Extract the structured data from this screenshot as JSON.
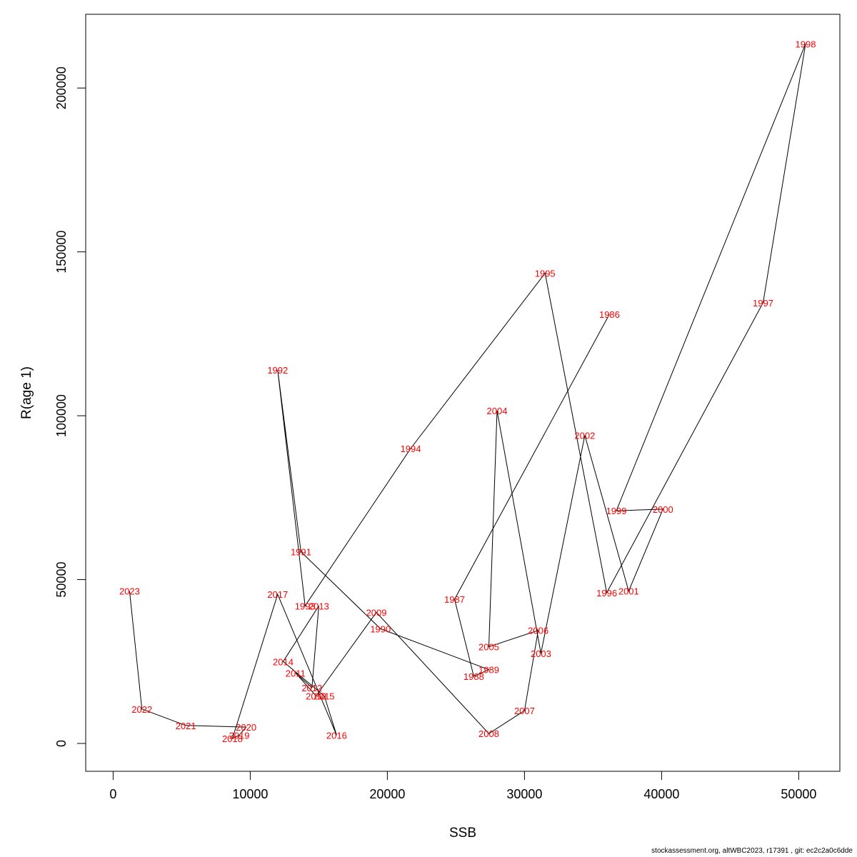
{
  "chart_data": {
    "type": "line",
    "title": "",
    "xlabel": "SSB",
    "ylabel": "R(age 1)",
    "xlim": [
      -2000,
      53000
    ],
    "ylim": [
      -8500,
      222500
    ],
    "x_ticks": [
      0,
      10000,
      20000,
      30000,
      40000,
      50000
    ],
    "x_tick_labels": [
      "0",
      "10000",
      "20000",
      "30000",
      "40000",
      "50000"
    ],
    "y_ticks": [
      0,
      50000,
      100000,
      150000,
      200000
    ],
    "y_tick_labels": [
      "0",
      "50000",
      "100000",
      "150000",
      "200000"
    ],
    "grid": false,
    "line_color": "#000000",
    "label_color": "#ff0000",
    "points": [
      {
        "year": "1986",
        "x": 36200,
        "y": 131000
      },
      {
        "year": "1987",
        "x": 24900,
        "y": 44000
      },
      {
        "year": "1988",
        "x": 26300,
        "y": 20500
      },
      {
        "year": "1989",
        "x": 27400,
        "y": 22500
      },
      {
        "year": "1990",
        "x": 19500,
        "y": 35000
      },
      {
        "year": "1991",
        "x": 13700,
        "y": 58500
      },
      {
        "year": "1992",
        "x": 12000,
        "y": 114000
      },
      {
        "year": "1993",
        "x": 14000,
        "y": 42000
      },
      {
        "year": "1994",
        "x": 21700,
        "y": 90000
      },
      {
        "year": "1995",
        "x": 31500,
        "y": 143500
      },
      {
        "year": "1996",
        "x": 36000,
        "y": 46000
      },
      {
        "year": "1997",
        "x": 47400,
        "y": 134500
      },
      {
        "year": "1998",
        "x": 50500,
        "y": 213500
      },
      {
        "year": "1999",
        "x": 36700,
        "y": 71000
      },
      {
        "year": "2000",
        "x": 40100,
        "y": 71500
      },
      {
        "year": "2001",
        "x": 37600,
        "y": 46500
      },
      {
        "year": "2002",
        "x": 34400,
        "y": 94000
      },
      {
        "year": "2003",
        "x": 31200,
        "y": 27500
      },
      {
        "year": "2004",
        "x": 28000,
        "y": 101500
      },
      {
        "year": "2005",
        "x": 27400,
        "y": 29500
      },
      {
        "year": "2006",
        "x": 31000,
        "y": 34500
      },
      {
        "year": "2007",
        "x": 30000,
        "y": 10000
      },
      {
        "year": "2008",
        "x": 27400,
        "y": 3000
      },
      {
        "year": "2009",
        "x": 19200,
        "y": 40000
      },
      {
        "year": "2010",
        "x": 14800,
        "y": 14500
      },
      {
        "year": "2011",
        "x": 13300,
        "y": 21500
      },
      {
        "year": "2012",
        "x": 14500,
        "y": 17000
      },
      {
        "year": "2013",
        "x": 15000,
        "y": 42000
      },
      {
        "year": "2014",
        "x": 12400,
        "y": 25000
      },
      {
        "year": "2015",
        "x": 15400,
        "y": 14500
      },
      {
        "year": "2016",
        "x": 16300,
        "y": 2500
      },
      {
        "year": "2017",
        "x": 12000,
        "y": 45500
      },
      {
        "year": "2018",
        "x": 8700,
        "y": 1500
      },
      {
        "year": "2019",
        "x": 9200,
        "y": 2500
      },
      {
        "year": "2020",
        "x": 9700,
        "y": 5000
      },
      {
        "year": "2021",
        "x": 5300,
        "y": 5500
      },
      {
        "year": "2022",
        "x": 2100,
        "y": 10500
      },
      {
        "year": "2023",
        "x": 1200,
        "y": 46500
      }
    ]
  },
  "footer": {
    "text": "stockassessment.org, altWBC2023, r17391 , git: ec2c2a0c6dde"
  }
}
